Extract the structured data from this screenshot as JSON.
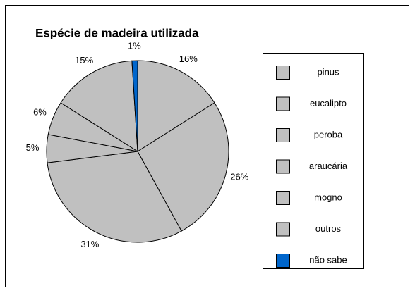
{
  "chart_data": {
    "type": "pie",
    "title": "Espécie de madeira utilizada",
    "categories": [
      "pinus",
      "eucalipto",
      "peroba",
      "araucária",
      "mogno",
      "outros",
      "não sabe"
    ],
    "values": [
      16,
      26,
      31,
      5,
      6,
      15,
      1
    ],
    "value_labels": [
      "16%",
      "26%",
      "31%",
      "5%",
      "6%",
      "15%",
      "1%"
    ],
    "colors": [
      "#c0c0c0",
      "#c0c0c0",
      "#c0c0c0",
      "#c0c0c0",
      "#c0c0c0",
      "#c0c0c0",
      "#0066cc"
    ],
    "legend": "right"
  }
}
